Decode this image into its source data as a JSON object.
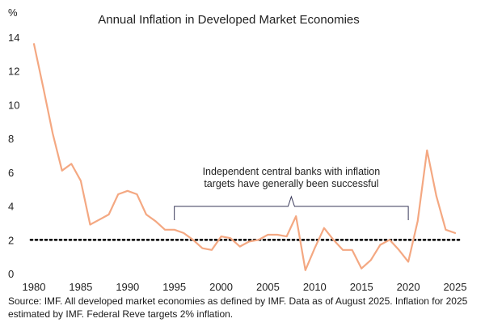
{
  "chart_data": {
    "type": "line",
    "title": "Annual Inflation in Developed Market Economies",
    "ylabel": "%",
    "xlim": [
      1980,
      2025
    ],
    "ylim": [
      0,
      14
    ],
    "x_ticks": [
      1980,
      1985,
      1990,
      1995,
      2000,
      2005,
      2010,
      2015,
      2020,
      2025
    ],
    "y_ticks": [
      0,
      2,
      4,
      6,
      8,
      10,
      12,
      14
    ],
    "grid": false,
    "series": [
      {
        "color": "#f4a882",
        "x": [
          1980,
          1981,
          1982,
          1983,
          1984,
          1985,
          1986,
          1987,
          1988,
          1989,
          1990,
          1991,
          1992,
          1993,
          1994,
          1995,
          1996,
          1997,
          1998,
          1999,
          2000,
          2001,
          2002,
          2003,
          2004,
          2005,
          2006,
          2007,
          2008,
          2009,
          2010,
          2011,
          2012,
          2013,
          2014,
          2015,
          2016,
          2017,
          2018,
          2019,
          2020,
          2021,
          2022,
          2023,
          2024,
          2025
        ],
        "values": [
          13.6,
          11.0,
          8.3,
          6.1,
          6.5,
          5.5,
          2.9,
          3.2,
          3.5,
          4.7,
          4.9,
          4.7,
          3.5,
          3.1,
          2.6,
          2.6,
          2.4,
          2.0,
          1.5,
          1.4,
          2.2,
          2.1,
          1.6,
          1.9,
          2.0,
          2.3,
          2.3,
          2.2,
          3.4,
          0.2,
          1.5,
          2.7,
          2.0,
          1.4,
          1.4,
          0.3,
          0.8,
          1.7,
          2.0,
          1.4,
          0.7,
          3.1,
          7.3,
          4.6,
          2.6,
          2.4
        ]
      }
    ],
    "reference_line": {
      "y": 2,
      "style": "dotted",
      "color": "#000000"
    },
    "annotation": {
      "text_line1": "Independent central banks with inflation",
      "text_line2": "targets have generally been successful",
      "bracket_x_range": [
        1995,
        2020
      ]
    }
  },
  "footer": {
    "line1": "Source: IMF. All developed market economies as defined by IMF. Data as of August 2025. Inflation for 2025",
    "line2": "estimated by IMF. Federal Reve targets 2% inflation."
  }
}
